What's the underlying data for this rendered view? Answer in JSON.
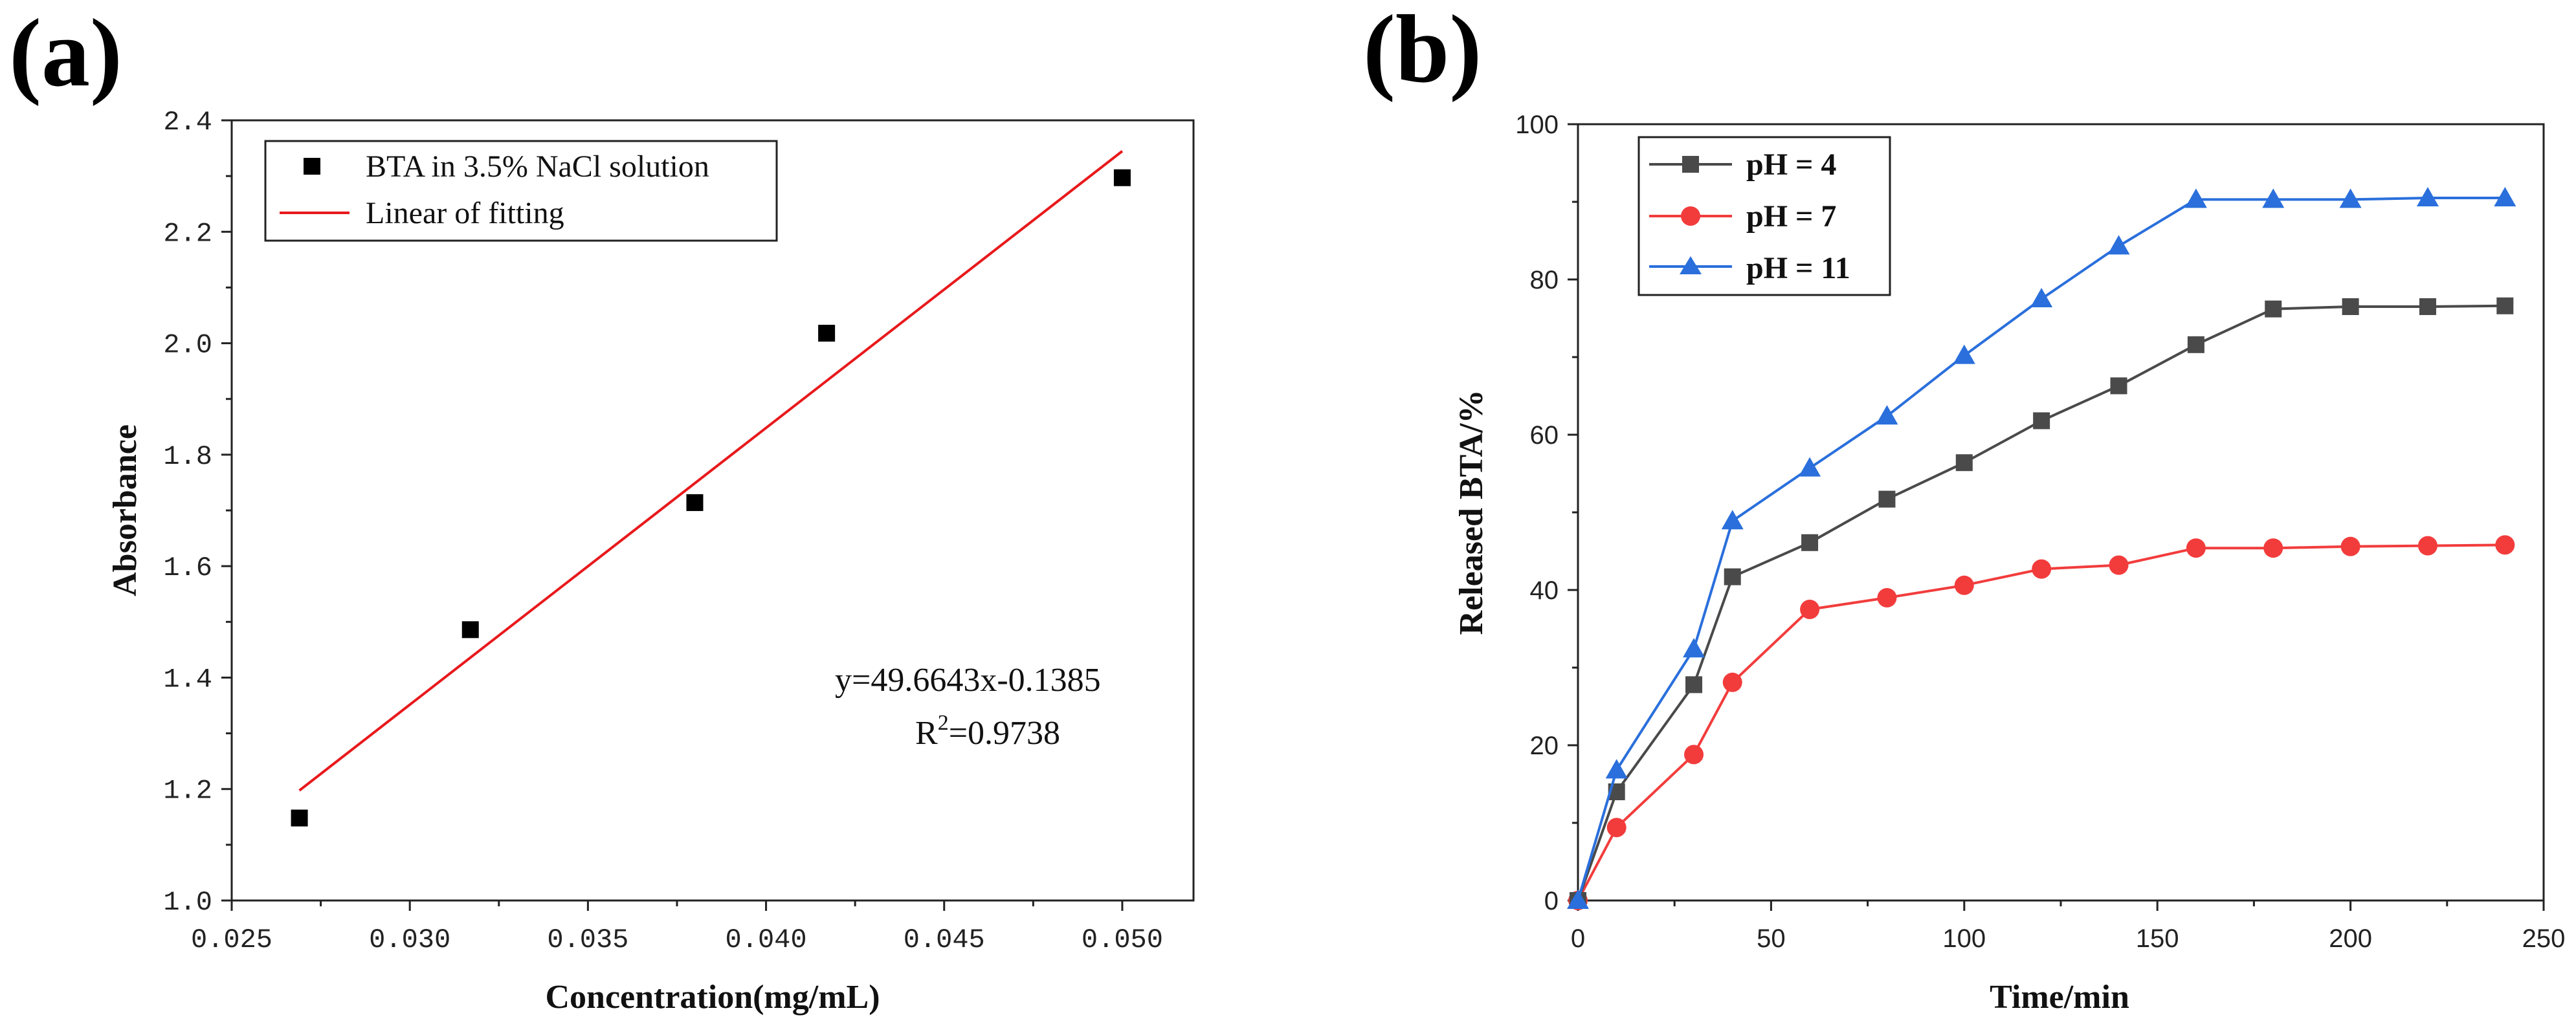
{
  "chart_data": [
    {
      "panel": "(a)",
      "type": "scatter",
      "xlabel": "Concentration(mg/mL)",
      "ylabel": "Absorbance",
      "xlim": [
        0.025,
        0.052
      ],
      "ylim": [
        1.0,
        2.4
      ],
      "xticks": [
        "0.025",
        "0.030",
        "0.035",
        "0.040",
        "0.045",
        "0.050"
      ],
      "xtick_values": [
        0.025,
        0.03,
        0.035,
        0.04,
        0.045,
        0.05
      ],
      "yticks": [
        "1.0",
        "1.2",
        "1.4",
        "1.6",
        "1.8",
        "2.0",
        "2.2",
        "2.4"
      ],
      "ytick_values": [
        1.0,
        1.2,
        1.4,
        1.6,
        1.8,
        2.0,
        2.2,
        2.4
      ],
      "series": [
        {
          "name": "BTA in 3.5% NaCl solution",
          "marker": "square",
          "color": "#000000",
          "x": [
            0.0269,
            0.0317,
            0.038,
            0.0417,
            0.05
          ],
          "y": [
            1.148,
            1.486,
            1.714,
            2.018,
            2.297
          ]
        }
      ],
      "fit": {
        "name": "Linear of fitting",
        "color": "#e8191c",
        "slope": 49.6643,
        "intercept": -0.1385,
        "x_range": [
          0.0269,
          0.05
        ]
      },
      "annotation": {
        "equation": "y=49.6643x-0.1385",
        "r2_prefix": "R",
        "r2_sup": "2",
        "r2_value": "=0.9738"
      }
    },
    {
      "panel": "(b)",
      "type": "line",
      "xlabel": "Time/min",
      "ylabel": "Released BTA/%",
      "xlim": [
        0,
        250
      ],
      "ylim": [
        0,
        100
      ],
      "xticks": [
        "0",
        "50",
        "100",
        "150",
        "200",
        "250"
      ],
      "xtick_values": [
        0,
        50,
        100,
        150,
        200,
        250
      ],
      "yticks": [
        "0",
        "20",
        "40",
        "60",
        "80",
        "100"
      ],
      "ytick_values": [
        0,
        20,
        40,
        60,
        80,
        100
      ],
      "x": [
        0,
        10,
        30,
        40,
        60,
        80,
        100,
        120,
        140,
        160,
        180,
        200,
        220,
        240
      ],
      "series": [
        {
          "name": "pH = 4",
          "marker": "square",
          "color": "#4a4a4a",
          "values": [
            0,
            14.0,
            27.8,
            41.7,
            46.1,
            51.7,
            56.4,
            61.8,
            66.3,
            71.6,
            76.2,
            76.5,
            76.5,
            76.6
          ]
        },
        {
          "name": "pH = 7",
          "marker": "circle",
          "color": "#f23c3c",
          "values": [
            0,
            9.4,
            18.8,
            28.1,
            37.5,
            39.0,
            40.6,
            42.7,
            43.2,
            45.4,
            45.4,
            45.6,
            45.7,
            45.8
          ]
        },
        {
          "name": "pH = 11",
          "marker": "triangle",
          "color": "#2a6fdc",
          "values": [
            0,
            16.8,
            32.4,
            48.9,
            55.7,
            62.4,
            70.2,
            77.5,
            84.3,
            90.3,
            90.3,
            90.3,
            90.5,
            90.5
          ]
        }
      ]
    }
  ]
}
